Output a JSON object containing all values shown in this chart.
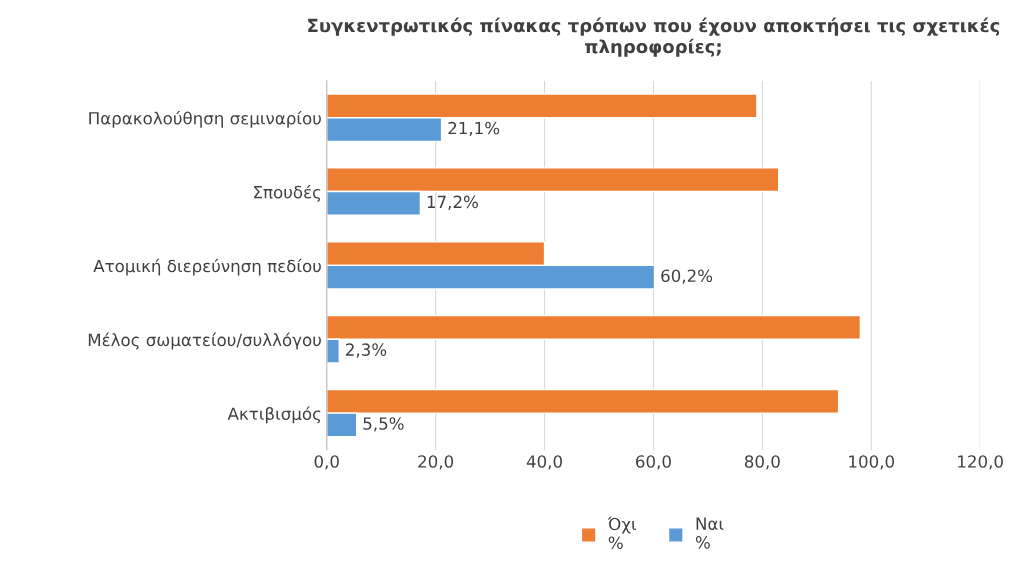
{
  "chart_data": {
    "type": "bar",
    "orientation": "horizontal",
    "title": "Συγκεντρωτικός πίνακας τρόπων που έχουν αποκτήσει τις σχετικές πληροφορίες;",
    "categories": [
      "Παρακολούθηση σεμιναρίου",
      "Σπουδές",
      "Ατομική διερεύνηση πεδίου",
      "Μέλος σωματείου/συλλόγου",
      "Ακτιβισμός"
    ],
    "series": [
      {
        "name": "Όχι %",
        "color": "#ed7d31",
        "values": [
          79,
          83,
          40,
          98,
          94
        ]
      },
      {
        "name": "Ναι %",
        "color": "#5b9bd5",
        "values": [
          21.1,
          17.2,
          60.2,
          2.3,
          5.5
        ],
        "value_labels": [
          "21,1%",
          "17,2%",
          "60,2%",
          "2,3%",
          "5,5%"
        ]
      }
    ],
    "xlim": [
      0,
      120
    ],
    "xticks": [
      {
        "value": 0,
        "label": "0,0"
      },
      {
        "value": 20,
        "label": "20,0"
      },
      {
        "value": 40,
        "label": "40,0"
      },
      {
        "value": 60,
        "label": "60,0"
      },
      {
        "value": 80,
        "label": "80,0"
      },
      {
        "value": 100,
        "label": "100,0"
      },
      {
        "value": 120,
        "label": "120,0"
      }
    ],
    "grid": "x",
    "legend": "bottom"
  }
}
